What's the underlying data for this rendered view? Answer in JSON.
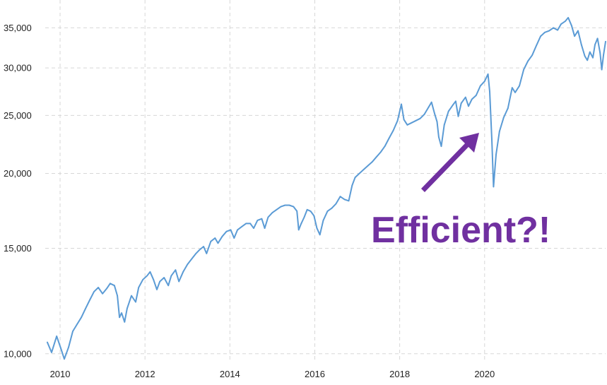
{
  "chart_data": {
    "type": "line",
    "title": "",
    "xlabel": "",
    "ylabel": "",
    "y_scale": "log",
    "grid": true,
    "legend": "none",
    "xlim": [
      2009.65,
      2022.85
    ],
    "ylim": [
      9700,
      37500
    ],
    "x_ticks": [
      2010,
      2012,
      2014,
      2016,
      2018,
      2020
    ],
    "x_tick_labels": [
      "2010",
      "2012",
      "2014",
      "2016",
      "2018",
      "2020"
    ],
    "y_ticks": [
      10000,
      15000,
      20000,
      25000,
      30000,
      35000
    ],
    "y_tick_labels": [
      "10,000",
      "15,000",
      "20,000",
      "25,000",
      "30,000",
      "35,000"
    ],
    "series": [
      {
        "color": "#5b9bd5",
        "points": [
          [
            2009.7,
            10450
          ],
          [
            2009.8,
            10050
          ],
          [
            2009.92,
            10700
          ],
          [
            2010.02,
            10200
          ],
          [
            2010.1,
            9800
          ],
          [
            2010.2,
            10250
          ],
          [
            2010.3,
            10900
          ],
          [
            2010.4,
            11200
          ],
          [
            2010.5,
            11500
          ],
          [
            2010.6,
            11900
          ],
          [
            2010.7,
            12300
          ],
          [
            2010.8,
            12700
          ],
          [
            2010.9,
            12900
          ],
          [
            2011.0,
            12600
          ],
          [
            2011.1,
            12850
          ],
          [
            2011.18,
            13100
          ],
          [
            2011.28,
            13000
          ],
          [
            2011.35,
            12500
          ],
          [
            2011.4,
            11500
          ],
          [
            2011.45,
            11700
          ],
          [
            2011.52,
            11300
          ],
          [
            2011.58,
            11900
          ],
          [
            2011.68,
            12500
          ],
          [
            2011.78,
            12200
          ],
          [
            2011.85,
            12900
          ],
          [
            2011.95,
            13300
          ],
          [
            2012.05,
            13500
          ],
          [
            2012.12,
            13700
          ],
          [
            2012.2,
            13300
          ],
          [
            2012.28,
            12800
          ],
          [
            2012.35,
            13200
          ],
          [
            2012.45,
            13400
          ],
          [
            2012.55,
            13000
          ],
          [
            2012.62,
            13500
          ],
          [
            2012.72,
            13800
          ],
          [
            2012.8,
            13200
          ],
          [
            2012.9,
            13700
          ],
          [
            2013.0,
            14100
          ],
          [
            2013.1,
            14400
          ],
          [
            2013.2,
            14700
          ],
          [
            2013.28,
            14900
          ],
          [
            2013.38,
            15100
          ],
          [
            2013.45,
            14700
          ],
          [
            2013.55,
            15400
          ],
          [
            2013.65,
            15600
          ],
          [
            2013.72,
            15300
          ],
          [
            2013.82,
            15700
          ],
          [
            2013.92,
            16000
          ],
          [
            2014.02,
            16100
          ],
          [
            2014.1,
            15600
          ],
          [
            2014.18,
            16100
          ],
          [
            2014.28,
            16300
          ],
          [
            2014.38,
            16500
          ],
          [
            2014.48,
            16500
          ],
          [
            2014.56,
            16200
          ],
          [
            2014.65,
            16700
          ],
          [
            2014.75,
            16800
          ],
          [
            2014.82,
            16200
          ],
          [
            2014.9,
            16900
          ],
          [
            2015.0,
            17200
          ],
          [
            2015.1,
            17400
          ],
          [
            2015.2,
            17600
          ],
          [
            2015.3,
            17700
          ],
          [
            2015.4,
            17700
          ],
          [
            2015.5,
            17600
          ],
          [
            2015.58,
            17300
          ],
          [
            2015.62,
            16100
          ],
          [
            2015.68,
            16500
          ],
          [
            2015.75,
            16900
          ],
          [
            2015.82,
            17400
          ],
          [
            2015.9,
            17300
          ],
          [
            2015.98,
            17000
          ],
          [
            2016.05,
            16200
          ],
          [
            2016.12,
            15800
          ],
          [
            2016.2,
            16700
          ],
          [
            2016.3,
            17300
          ],
          [
            2016.4,
            17500
          ],
          [
            2016.5,
            17800
          ],
          [
            2016.6,
            18300
          ],
          [
            2016.7,
            18100
          ],
          [
            2016.8,
            18000
          ],
          [
            2016.88,
            19100
          ],
          [
            2016.95,
            19700
          ],
          [
            2017.05,
            20000
          ],
          [
            2017.15,
            20300
          ],
          [
            2017.25,
            20600
          ],
          [
            2017.35,
            20900
          ],
          [
            2017.45,
            21300
          ],
          [
            2017.55,
            21700
          ],
          [
            2017.65,
            22200
          ],
          [
            2017.75,
            22900
          ],
          [
            2017.85,
            23600
          ],
          [
            2017.95,
            24500
          ],
          [
            2018.04,
            26100
          ],
          [
            2018.1,
            24600
          ],
          [
            2018.18,
            24100
          ],
          [
            2018.28,
            24300
          ],
          [
            2018.38,
            24500
          ],
          [
            2018.48,
            24700
          ],
          [
            2018.58,
            25100
          ],
          [
            2018.68,
            25800
          ],
          [
            2018.75,
            26300
          ],
          [
            2018.82,
            25200
          ],
          [
            2018.88,
            24400
          ],
          [
            2018.92,
            23000
          ],
          [
            2018.98,
            22200
          ],
          [
            2019.05,
            24100
          ],
          [
            2019.15,
            25400
          ],
          [
            2019.25,
            26000
          ],
          [
            2019.32,
            26400
          ],
          [
            2019.38,
            24900
          ],
          [
            2019.45,
            26200
          ],
          [
            2019.55,
            26800
          ],
          [
            2019.62,
            25900
          ],
          [
            2019.7,
            26600
          ],
          [
            2019.8,
            27000
          ],
          [
            2019.9,
            28000
          ],
          [
            2020.0,
            28500
          ],
          [
            2020.08,
            29300
          ],
          [
            2020.12,
            27400
          ],
          [
            2020.17,
            22800
          ],
          [
            2020.21,
            19000
          ],
          [
            2020.27,
            21500
          ],
          [
            2020.35,
            23500
          ],
          [
            2020.45,
            24800
          ],
          [
            2020.55,
            25700
          ],
          [
            2020.65,
            27800
          ],
          [
            2020.72,
            27300
          ],
          [
            2020.82,
            28000
          ],
          [
            2020.92,
            29800
          ],
          [
            2021.02,
            30800
          ],
          [
            2021.12,
            31500
          ],
          [
            2021.22,
            32700
          ],
          [
            2021.32,
            33900
          ],
          [
            2021.42,
            34400
          ],
          [
            2021.52,
            34600
          ],
          [
            2021.62,
            35000
          ],
          [
            2021.72,
            34700
          ],
          [
            2021.8,
            35500
          ],
          [
            2021.9,
            35900
          ],
          [
            2021.97,
            36400
          ],
          [
            2022.05,
            35300
          ],
          [
            2022.12,
            33900
          ],
          [
            2022.2,
            34600
          ],
          [
            2022.28,
            32800
          ],
          [
            2022.36,
            31400
          ],
          [
            2022.42,
            30900
          ],
          [
            2022.48,
            31900
          ],
          [
            2022.55,
            31200
          ],
          [
            2022.6,
            32800
          ],
          [
            2022.66,
            33600
          ],
          [
            2022.72,
            31800
          ],
          [
            2022.76,
            29800
          ],
          [
            2022.8,
            31500
          ],
          [
            2022.85,
            33200
          ]
        ]
      }
    ],
    "annotations": [
      {
        "text": "Efficient?!",
        "color": "#7030a0"
      }
    ]
  }
}
